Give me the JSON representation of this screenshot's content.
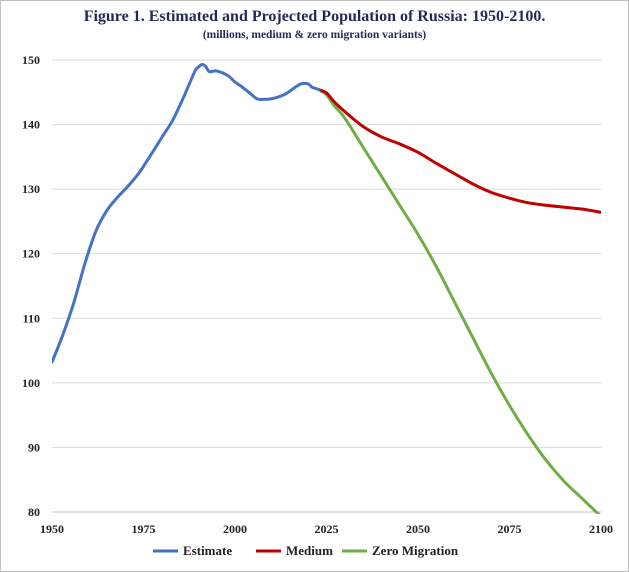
{
  "chart_data": {
    "type": "line",
    "title": "Figure 1. Estimated and Projected Population of Russia: 1950-2100.",
    "subtitle": "(millions, medium & zero migration variants)",
    "xlabel": "",
    "ylabel": "",
    "xlim": [
      1950,
      2100
    ],
    "ylim": [
      80,
      150
    ],
    "x_ticks": [
      1950,
      1975,
      2000,
      2025,
      2050,
      2075,
      2100
    ],
    "y_ticks": [
      80,
      90,
      100,
      110,
      120,
      130,
      140,
      150
    ],
    "grid": true,
    "legend_position": "bottom",
    "series": [
      {
        "name": "Estimate",
        "color": "#4472c4",
        "points": [
          [
            1950,
            103.2
          ],
          [
            1953,
            107.5
          ],
          [
            1956,
            112.5
          ],
          [
            1959,
            118.5
          ],
          [
            1962,
            123.5
          ],
          [
            1965,
            126.7
          ],
          [
            1968,
            128.8
          ],
          [
            1971,
            130.6
          ],
          [
            1974,
            132.7
          ],
          [
            1977,
            135.3
          ],
          [
            1980,
            138.0
          ],
          [
            1983,
            140.7
          ],
          [
            1986,
            144.3
          ],
          [
            1989,
            148.2
          ],
          [
            1990,
            148.9
          ],
          [
            1991,
            149.3
          ],
          [
            1992,
            149.0
          ],
          [
            1993,
            148.2
          ],
          [
            1995,
            148.3
          ],
          [
            1998,
            147.6
          ],
          [
            2000,
            146.6
          ],
          [
            2002,
            145.8
          ],
          [
            2004,
            144.9
          ],
          [
            2006,
            144.0
          ],
          [
            2008,
            143.9
          ],
          [
            2010,
            144.0
          ],
          [
            2012,
            144.3
          ],
          [
            2014,
            144.8
          ],
          [
            2016,
            145.6
          ],
          [
            2018,
            146.3
          ],
          [
            2020,
            146.3
          ],
          [
            2021,
            145.8
          ],
          [
            2022,
            145.6
          ],
          [
            2023,
            145.4
          ]
        ]
      },
      {
        "name": "Medium",
        "color": "#c00000",
        "points": [
          [
            2023,
            145.4
          ],
          [
            2025,
            144.9
          ],
          [
            2027,
            143.6
          ],
          [
            2030,
            142.0
          ],
          [
            2035,
            139.7
          ],
          [
            2040,
            138.1
          ],
          [
            2045,
            137.0
          ],
          [
            2050,
            135.7
          ],
          [
            2055,
            134.0
          ],
          [
            2060,
            132.4
          ],
          [
            2065,
            130.8
          ],
          [
            2070,
            129.5
          ],
          [
            2075,
            128.6
          ],
          [
            2080,
            127.9
          ],
          [
            2085,
            127.5
          ],
          [
            2090,
            127.2
          ],
          [
            2095,
            126.9
          ],
          [
            2100,
            126.4
          ]
        ]
      },
      {
        "name": "Zero Migration",
        "color": "#70ad47",
        "points": [
          [
            2023,
            145.4
          ],
          [
            2025,
            144.6
          ],
          [
            2027,
            143.0
          ],
          [
            2030,
            141.0
          ],
          [
            2035,
            136.5
          ],
          [
            2040,
            132.0
          ],
          [
            2045,
            127.5
          ],
          [
            2050,
            123.0
          ],
          [
            2055,
            118.0
          ],
          [
            2060,
            112.5
          ],
          [
            2065,
            107.0
          ],
          [
            2070,
            101.5
          ],
          [
            2075,
            96.5
          ],
          [
            2080,
            92.0
          ],
          [
            2085,
            88.0
          ],
          [
            2090,
            84.7
          ],
          [
            2095,
            82.0
          ],
          [
            2100,
            79.3
          ]
        ]
      }
    ]
  }
}
